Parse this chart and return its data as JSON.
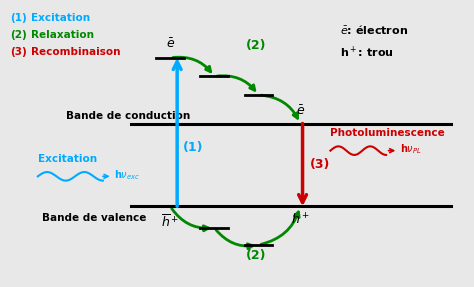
{
  "bg_color": "#e8e8e8",
  "inner_bg": "#ffffff",
  "legend_items": [
    {
      "num": "(1)",
      "label": " Excitation",
      "color": "#00aaff"
    },
    {
      "num": "(2)",
      "label": " Relaxation",
      "color": "#008800"
    },
    {
      "num": "(3)",
      "label": " Recombinaison",
      "color": "#cc0000"
    }
  ],
  "band_conduction_label": "Bande de conduction",
  "band_valence_label": "Bande de valence",
  "colors": {
    "cyan": "#00aaff",
    "green": "#008800",
    "red": "#cc0000",
    "black": "#000000"
  }
}
